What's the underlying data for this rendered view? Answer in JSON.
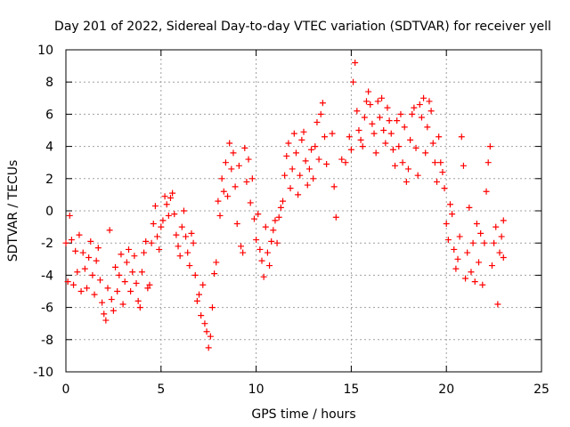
{
  "chart_data": {
    "type": "scatter",
    "title": "Day 201 of 2022, Sidereal Day-to-day VTEC variation (SDTVAR) for receiver yell",
    "xlabel": "GPS time / hours",
    "ylabel": "SDTVAR / TECUs",
    "xlim": [
      0,
      25
    ],
    "ylim": [
      -10,
      10
    ],
    "x_ticks": [
      0,
      5,
      10,
      15,
      20,
      25
    ],
    "y_ticks": [
      -10,
      -8,
      -6,
      -4,
      -2,
      0,
      2,
      4,
      6,
      8,
      10
    ],
    "grid": true,
    "marker": "+",
    "color": "#ff0000",
    "series": [
      {
        "name": "SDTVAR",
        "points": [
          [
            0.0,
            -2.0
          ],
          [
            0.1,
            -4.4
          ],
          [
            0.2,
            -0.3
          ],
          [
            0.3,
            -1.8
          ],
          [
            0.4,
            -4.6
          ],
          [
            0.5,
            -2.5
          ],
          [
            0.6,
            -3.8
          ],
          [
            0.7,
            -1.5
          ],
          [
            0.8,
            -5.0
          ],
          [
            0.9,
            -2.6
          ],
          [
            1.0,
            -3.6
          ],
          [
            1.1,
            -4.8
          ],
          [
            1.2,
            -2.9
          ],
          [
            1.3,
            -1.9
          ],
          [
            1.4,
            -4.0
          ],
          [
            1.5,
            -5.2
          ],
          [
            1.6,
            -3.1
          ],
          [
            1.7,
            -2.3
          ],
          [
            1.8,
            -4.3
          ],
          [
            1.9,
            -5.7
          ],
          [
            2.0,
            -6.4
          ],
          [
            2.1,
            -6.8
          ],
          [
            2.2,
            -4.8
          ],
          [
            2.3,
            -1.2
          ],
          [
            2.4,
            -5.5
          ],
          [
            2.5,
            -6.2
          ],
          [
            2.6,
            -3.5
          ],
          [
            2.7,
            -5.0
          ],
          [
            2.8,
            -4.0
          ],
          [
            2.9,
            -2.7
          ],
          [
            3.0,
            -5.8
          ],
          [
            3.1,
            -4.4
          ],
          [
            3.2,
            -3.2
          ],
          [
            3.3,
            -2.4
          ],
          [
            3.4,
            -5.0
          ],
          [
            3.5,
            -3.8
          ],
          [
            3.6,
            -2.8
          ],
          [
            3.7,
            -4.5
          ],
          [
            3.8,
            -5.6
          ],
          [
            3.9,
            -6.0
          ],
          [
            4.0,
            -3.8
          ],
          [
            4.1,
            -2.6
          ],
          [
            4.2,
            -1.9
          ],
          [
            4.3,
            -4.8
          ],
          [
            4.4,
            -4.6
          ],
          [
            4.5,
            -2.0
          ],
          [
            4.6,
            -0.8
          ],
          [
            4.7,
            0.3
          ],
          [
            4.8,
            -1.6
          ],
          [
            4.9,
            -2.4
          ],
          [
            5.0,
            -1.0
          ],
          [
            5.1,
            -0.6
          ],
          [
            5.2,
            0.9
          ],
          [
            5.3,
            0.4
          ],
          [
            5.4,
            -0.3
          ],
          [
            5.5,
            0.8
          ],
          [
            5.6,
            1.1
          ],
          [
            5.7,
            -0.2
          ],
          [
            5.8,
            -1.5
          ],
          [
            5.9,
            -2.2
          ],
          [
            6.0,
            -2.8
          ],
          [
            6.1,
            -1.0
          ],
          [
            6.2,
            0.0
          ],
          [
            6.3,
            -1.6
          ],
          [
            6.4,
            -2.6
          ],
          [
            6.5,
            -3.4
          ],
          [
            6.6,
            -1.4
          ],
          [
            6.7,
            -2.0
          ],
          [
            6.8,
            -4.0
          ],
          [
            6.9,
            -5.6
          ],
          [
            7.0,
            -5.2
          ],
          [
            7.1,
            -6.5
          ],
          [
            7.2,
            -4.6
          ],
          [
            7.3,
            -7.0
          ],
          [
            7.4,
            -7.5
          ],
          [
            7.5,
            -8.5
          ],
          [
            7.6,
            -7.8
          ],
          [
            7.7,
            -6.0
          ],
          [
            7.8,
            -3.9
          ],
          [
            7.9,
            -3.2
          ],
          [
            8.0,
            0.6
          ],
          [
            8.1,
            -0.3
          ],
          [
            8.2,
            2.0
          ],
          [
            8.3,
            1.2
          ],
          [
            8.4,
            3.0
          ],
          [
            8.5,
            0.9
          ],
          [
            8.6,
            4.2
          ],
          [
            8.7,
            2.6
          ],
          [
            8.8,
            3.6
          ],
          [
            8.9,
            1.5
          ],
          [
            9.0,
            -0.8
          ],
          [
            9.1,
            2.8
          ],
          [
            9.2,
            -2.2
          ],
          [
            9.3,
            -2.6
          ],
          [
            9.4,
            3.9
          ],
          [
            9.5,
            1.8
          ],
          [
            9.6,
            3.2
          ],
          [
            9.7,
            0.5
          ],
          [
            9.8,
            2.0
          ],
          [
            9.9,
            -0.5
          ],
          [
            10.0,
            -1.8
          ],
          [
            10.1,
            -0.2
          ],
          [
            10.2,
            -2.4
          ],
          [
            10.3,
            -3.1
          ],
          [
            10.4,
            -4.1
          ],
          [
            10.5,
            -1.0
          ],
          [
            10.6,
            -2.6
          ],
          [
            10.7,
            -3.4
          ],
          [
            10.8,
            -1.9
          ],
          [
            10.9,
            -1.2
          ],
          [
            11.0,
            -0.6
          ],
          [
            11.1,
            -2.0
          ],
          [
            11.2,
            -0.4
          ],
          [
            11.3,
            0.2
          ],
          [
            11.4,
            0.6
          ],
          [
            11.5,
            2.2
          ],
          [
            11.6,
            3.4
          ],
          [
            11.7,
            4.2
          ],
          [
            11.8,
            1.4
          ],
          [
            11.9,
            2.6
          ],
          [
            12.0,
            4.8
          ],
          [
            12.1,
            3.6
          ],
          [
            12.2,
            1.0
          ],
          [
            12.3,
            2.2
          ],
          [
            12.4,
            4.4
          ],
          [
            12.5,
            4.9
          ],
          [
            12.6,
            3.1
          ],
          [
            12.7,
            1.6
          ],
          [
            12.8,
            2.6
          ],
          [
            12.9,
            3.8
          ],
          [
            13.0,
            2.0
          ],
          [
            13.1,
            4.0
          ],
          [
            13.2,
            5.5
          ],
          [
            13.3,
            3.2
          ],
          [
            13.4,
            6.0
          ],
          [
            13.5,
            6.7
          ],
          [
            13.6,
            4.6
          ],
          [
            13.7,
            2.9
          ],
          [
            14.0,
            4.8
          ],
          [
            14.1,
            1.5
          ],
          [
            14.2,
            -0.4
          ],
          [
            14.5,
            3.2
          ],
          [
            14.7,
            3.0
          ],
          [
            14.9,
            4.6
          ],
          [
            15.0,
            3.8
          ],
          [
            15.1,
            8.0
          ],
          [
            15.2,
            9.2
          ],
          [
            15.3,
            6.2
          ],
          [
            15.4,
            5.0
          ],
          [
            15.5,
            4.4
          ],
          [
            15.6,
            4.0
          ],
          [
            15.7,
            5.8
          ],
          [
            15.8,
            6.8
          ],
          [
            15.9,
            7.4
          ],
          [
            16.0,
            6.6
          ],
          [
            16.1,
            5.4
          ],
          [
            16.2,
            4.8
          ],
          [
            16.3,
            3.6
          ],
          [
            16.4,
            6.8
          ],
          [
            16.5,
            5.8
          ],
          [
            16.6,
            7.0
          ],
          [
            16.7,
            5.0
          ],
          [
            16.8,
            4.2
          ],
          [
            16.9,
            6.4
          ],
          [
            17.0,
            5.6
          ],
          [
            17.1,
            4.8
          ],
          [
            17.2,
            3.8
          ],
          [
            17.3,
            2.8
          ],
          [
            17.4,
            5.6
          ],
          [
            17.5,
            4.0
          ],
          [
            17.6,
            6.0
          ],
          [
            17.7,
            3.0
          ],
          [
            17.8,
            5.2
          ],
          [
            17.9,
            1.8
          ],
          [
            18.0,
            2.6
          ],
          [
            18.1,
            4.4
          ],
          [
            18.2,
            6.0
          ],
          [
            18.3,
            6.4
          ],
          [
            18.4,
            3.9
          ],
          [
            18.5,
            2.2
          ],
          [
            18.6,
            6.6
          ],
          [
            18.7,
            5.8
          ],
          [
            18.8,
            7.0
          ],
          [
            18.9,
            3.6
          ],
          [
            19.0,
            5.2
          ],
          [
            19.1,
            6.8
          ],
          [
            19.2,
            6.2
          ],
          [
            19.3,
            4.2
          ],
          [
            19.4,
            3.0
          ],
          [
            19.5,
            1.8
          ],
          [
            19.6,
            4.6
          ],
          [
            19.7,
            3.0
          ],
          [
            19.8,
            2.4
          ],
          [
            19.9,
            1.4
          ],
          [
            20.0,
            -0.8
          ],
          [
            20.1,
            -1.8
          ],
          [
            20.2,
            0.4
          ],
          [
            20.3,
            -0.2
          ],
          [
            20.4,
            -2.4
          ],
          [
            20.5,
            -3.6
          ],
          [
            20.6,
            -3.0
          ],
          [
            20.7,
            -1.6
          ],
          [
            20.8,
            4.6
          ],
          [
            20.9,
            2.8
          ],
          [
            21.0,
            -4.2
          ],
          [
            21.1,
            -2.6
          ],
          [
            21.2,
            0.2
          ],
          [
            21.3,
            -3.8
          ],
          [
            21.4,
            -2.0
          ],
          [
            21.5,
            -4.4
          ],
          [
            21.6,
            -0.8
          ],
          [
            21.7,
            -3.2
          ],
          [
            21.8,
            -1.4
          ],
          [
            21.9,
            -4.6
          ],
          [
            22.0,
            -2.0
          ],
          [
            22.1,
            1.2
          ],
          [
            22.2,
            3.0
          ],
          [
            22.3,
            4.0
          ],
          [
            22.4,
            -3.4
          ],
          [
            22.5,
            -2.0
          ],
          [
            22.6,
            -1.0
          ],
          [
            22.7,
            -5.8
          ],
          [
            22.8,
            -2.6
          ],
          [
            22.9,
            -1.6
          ],
          [
            23.0,
            -0.6
          ],
          [
            23.0,
            -2.9
          ]
        ]
      }
    ]
  }
}
